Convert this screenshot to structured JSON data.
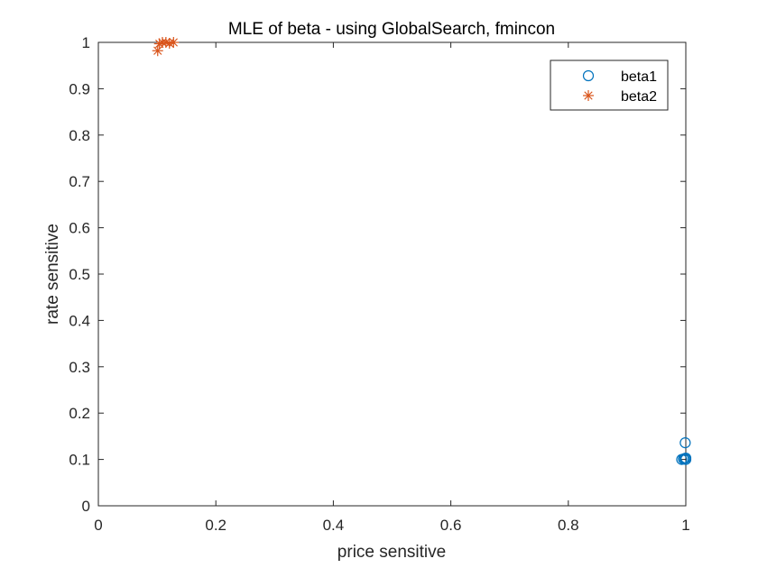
{
  "chart_data": {
    "type": "scatter",
    "title": "MLE of beta - using GlobalSearch, fmincon",
    "xlabel": "price sensitive",
    "ylabel": "rate sensitive",
    "xlim": [
      0,
      1
    ],
    "ylim": [
      0,
      1
    ],
    "x_ticks": [
      "0",
      "0.2",
      "0.4",
      "0.6",
      "0.8",
      "1"
    ],
    "y_ticks": [
      "0",
      "0.1",
      "0.2",
      "0.3",
      "0.4",
      "0.5",
      "0.6",
      "0.7",
      "0.8",
      "0.9",
      "1"
    ],
    "grid": false,
    "legend_position": "top-right",
    "series": [
      {
        "name": "beta1",
        "marker": "circle",
        "color": "#0072BD",
        "points": [
          {
            "x": 0.993,
            "y": 0.1
          },
          {
            "x": 0.996,
            "y": 0.101
          },
          {
            "x": 0.998,
            "y": 0.102
          },
          {
            "x": 1.0,
            "y": 0.1
          },
          {
            "x": 1.0,
            "y": 0.103
          },
          {
            "x": 0.999,
            "y": 0.136
          }
        ]
      },
      {
        "name": "beta2",
        "marker": "asterisk",
        "color": "#D95319",
        "points": [
          {
            "x": 0.101,
            "y": 0.982
          },
          {
            "x": 0.104,
            "y": 0.997
          },
          {
            "x": 0.109,
            "y": 1.0
          },
          {
            "x": 0.115,
            "y": 1.0
          },
          {
            "x": 0.121,
            "y": 0.998
          },
          {
            "x": 0.128,
            "y": 1.0
          }
        ]
      }
    ]
  }
}
